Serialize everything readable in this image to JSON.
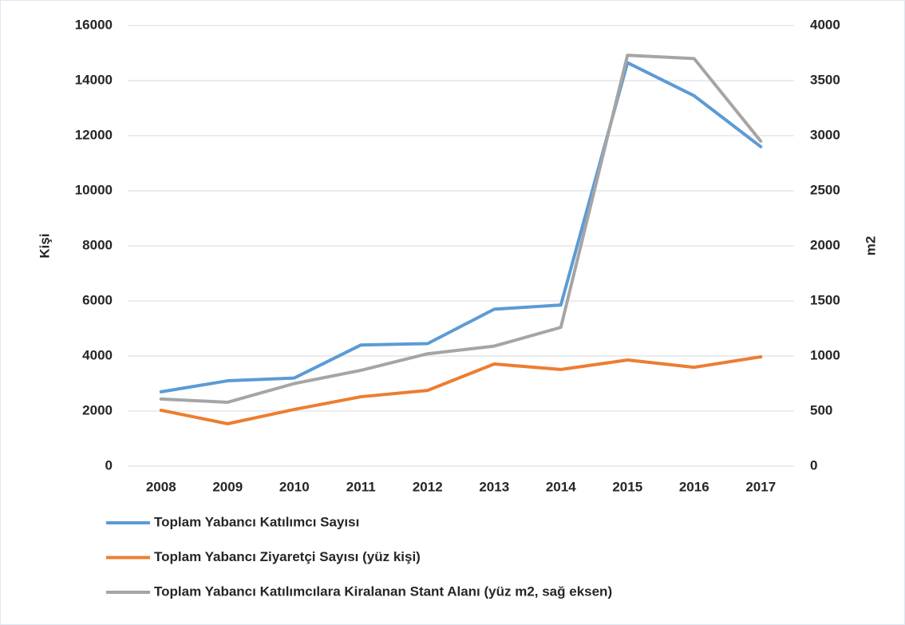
{
  "chart_data": {
    "type": "line",
    "categories": [
      "2008",
      "2009",
      "2010",
      "2011",
      "2012",
      "2013",
      "2014",
      "2015",
      "2016",
      "2017"
    ],
    "series": [
      {
        "name": "Toplam Yabancı Katılımcı Sayısı",
        "color": "#5b9bd5",
        "values": [
          2700,
          3100,
          3200,
          4400,
          4450,
          5700,
          5850,
          14650,
          13450,
          11600
        ]
      },
      {
        "name": "Toplam Yabancı Ziyaretçi Sayısı (yüz kişi)",
        "color": "#ed7d31",
        "values": [
          2030,
          1540,
          2060,
          2520,
          2750,
          3710,
          3510,
          3855,
          3590,
          3970
        ]
      },
      {
        "name": "Toplam Yabancı Katılımcılara Kiralanan Stant Alanı (yüz m2, sağ eksen)",
        "color": "#a5a5a5",
        "axis": "y2",
        "values": [
          610,
          580,
          750,
          870,
          1020,
          1090,
          1260,
          3730,
          3700,
          2950
        ]
      }
    ],
    "ylabel": "Kişi",
    "y2label": "m2",
    "ylim": [
      0,
      16000
    ],
    "yticks": [
      0,
      2000,
      4000,
      6000,
      8000,
      10000,
      12000,
      14000,
      16000
    ],
    "y2lim": [
      0,
      4000
    ],
    "y2ticks": [
      0,
      500,
      1000,
      1500,
      2000,
      2500,
      3000,
      3500,
      4000
    ],
    "grid": true,
    "legend": "bottom"
  }
}
